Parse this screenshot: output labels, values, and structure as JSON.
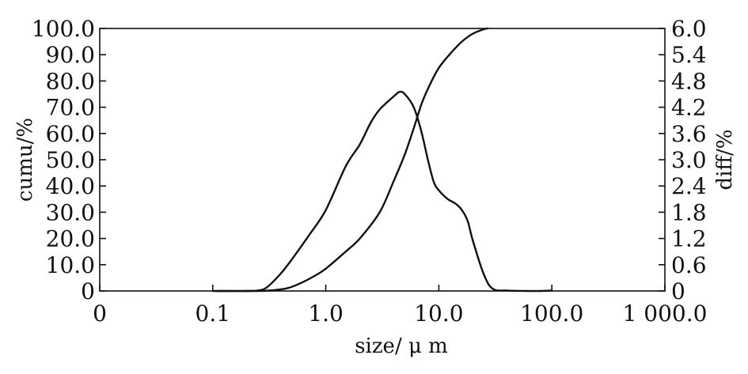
{
  "chart_data": {
    "type": "line",
    "xlabel": "size/ μ m",
    "ylabel_left": "cumu/%",
    "ylabel_right": "diff/%",
    "x_scale": "log",
    "x_ticks": [
      {
        "value": 0.01,
        "label": "0"
      },
      {
        "value": 0.1,
        "label": "0.1"
      },
      {
        "value": 1,
        "label": "1.0"
      },
      {
        "value": 10,
        "label": "10.0"
      },
      {
        "value": 100,
        "label": "100.0"
      },
      {
        "value": 1000,
        "label": "1 000.0"
      }
    ],
    "xlim": [
      0.01,
      1000
    ],
    "y_left": {
      "ylim": [
        0,
        100
      ],
      "ticks": [
        "0",
        "10.0",
        "20.0",
        "30.0",
        "40.0",
        "50.0",
        "60.0",
        "70.0",
        "80.0",
        "90.0",
        "100.0"
      ]
    },
    "y_right": {
      "ylim": [
        0,
        6
      ],
      "ticks": [
        "0",
        "0.6",
        "1.2",
        "1.8",
        "2.4",
        "3.0",
        "3.6",
        "4.2",
        "4.8",
        "5.4",
        "6.0"
      ]
    },
    "grid": false,
    "series": [
      {
        "axis": "left",
        "x": [
          0.1,
          0.2,
          0.3,
          0.45,
          0.6,
          0.8,
          1.0,
          1.5,
          2.0,
          3.0,
          4.0,
          5.0,
          6.0,
          7.0,
          8.0,
          10.0,
          13.0,
          16.0,
          20.0,
          25.0,
          27.0
        ],
        "y": [
          0,
          0,
          0.1,
          1.0,
          3.0,
          5.8,
          8.5,
          15.0,
          20.0,
          30.0,
          42.0,
          52.0,
          62.0,
          71.0,
          77.0,
          85.0,
          91.0,
          95.0,
          98.0,
          99.7,
          100
        ]
      },
      {
        "axis": "right",
        "x": [
          0.11,
          0.15,
          0.2,
          0.25,
          0.3,
          0.4,
          0.5,
          0.7,
          1.0,
          1.5,
          2.0,
          2.5,
          3.0,
          4.0,
          4.5,
          5.0,
          6.0,
          7.0,
          8.0,
          9.0,
          10.0,
          12.0,
          14.0,
          16.0,
          18.0,
          20.0,
          25.0,
          30.0,
          40.0,
          60.0,
          80.0,
          100.0
        ],
        "y": [
          0,
          0,
          0,
          0.01,
          0.08,
          0.4,
          0.72,
          1.25,
          1.85,
          2.85,
          3.35,
          3.85,
          4.15,
          4.45,
          4.55,
          4.5,
          4.2,
          3.65,
          3.0,
          2.5,
          2.3,
          2.1,
          2.0,
          1.85,
          1.6,
          1.15,
          0.38,
          0.05,
          0.01,
          0,
          0,
          0.01
        ]
      }
    ]
  }
}
